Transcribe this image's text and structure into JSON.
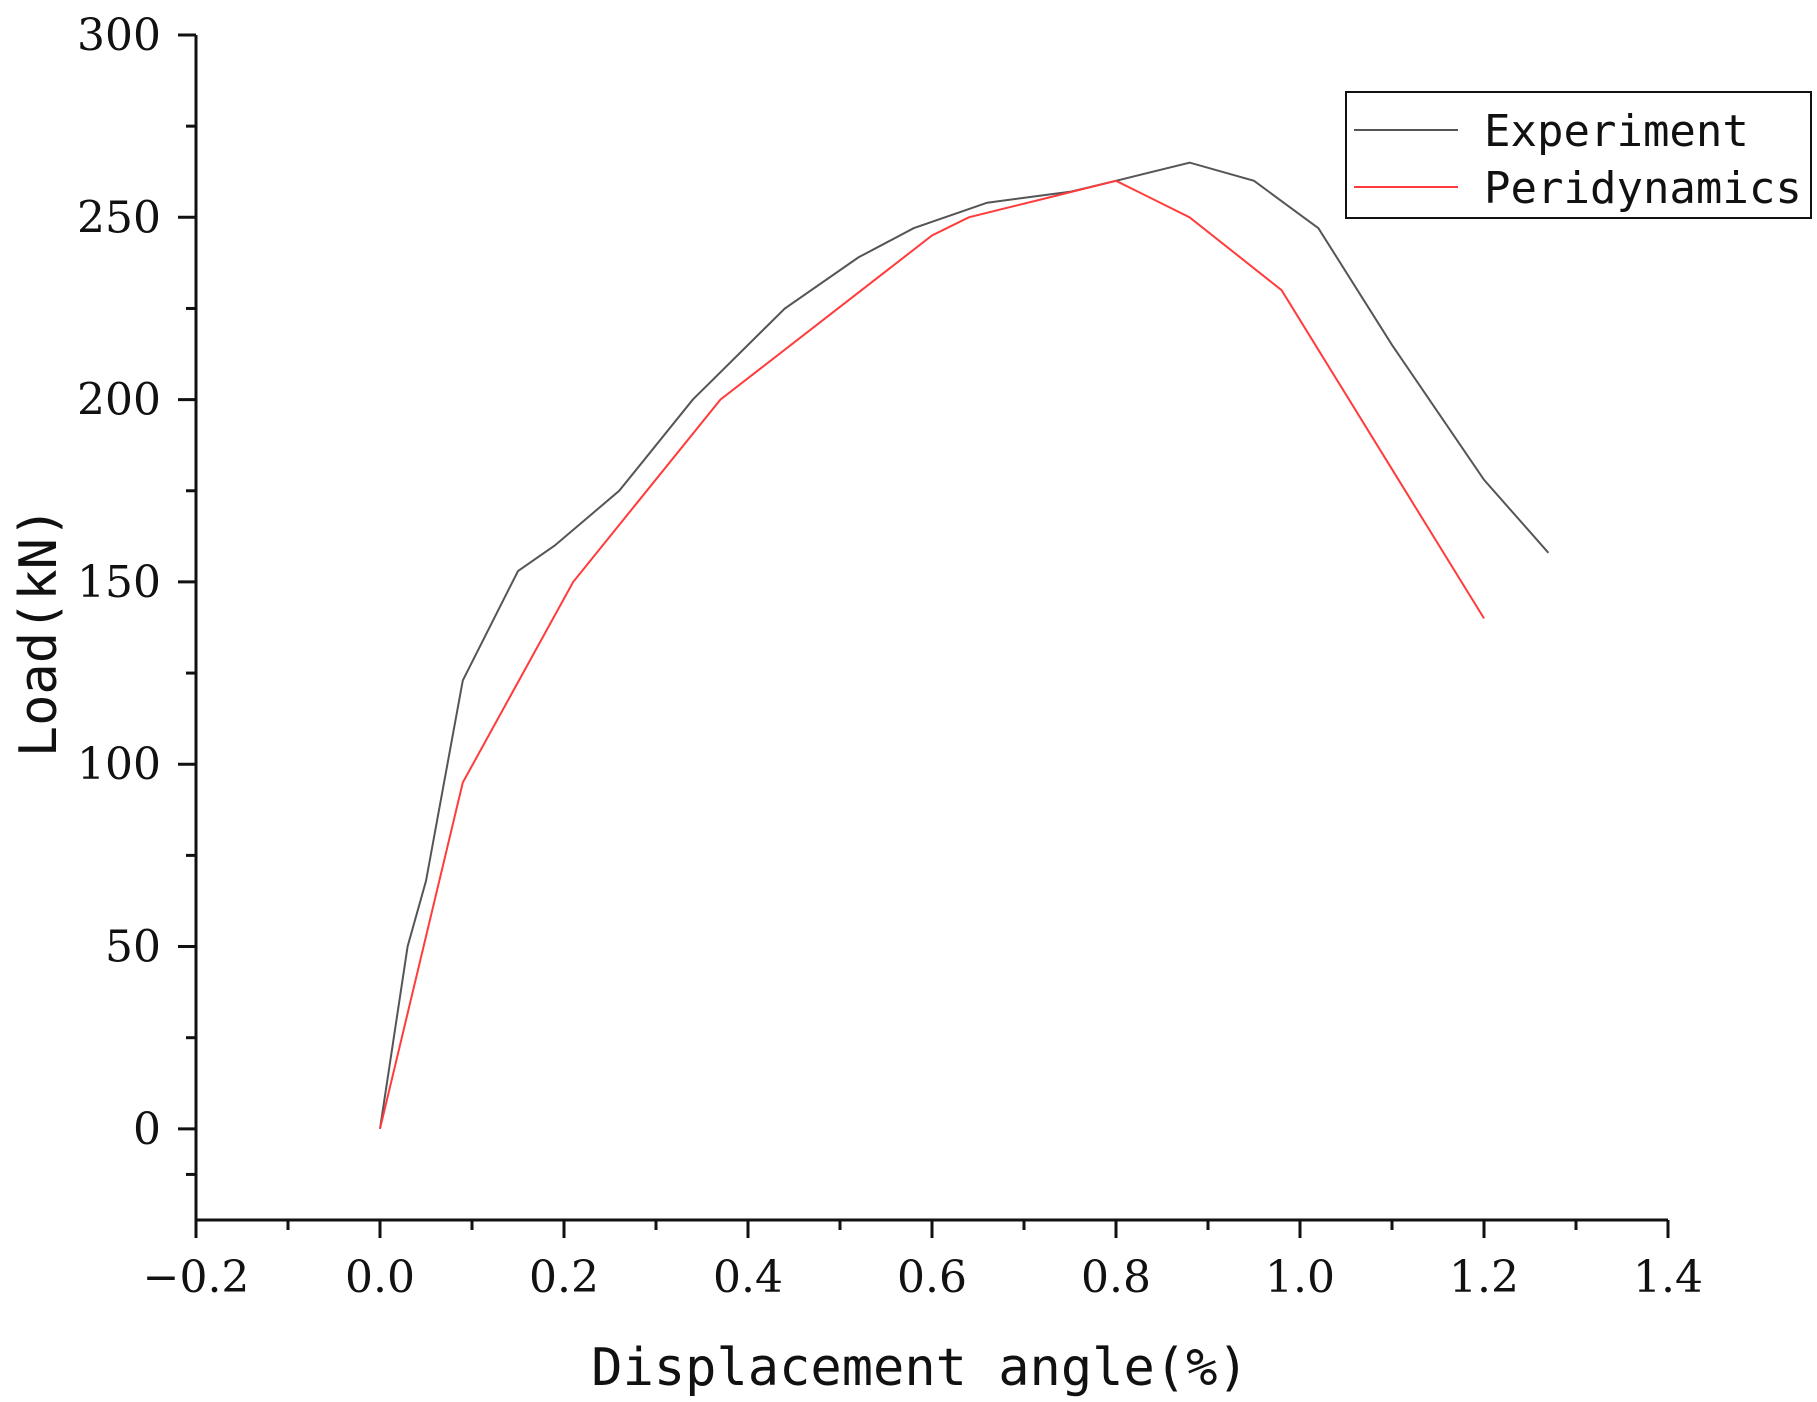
{
  "chart_data": {
    "type": "line",
    "xlabel": "Displacement angle(%)",
    "ylabel": "Load(kN)",
    "xlim": [
      -0.2,
      1.4
    ],
    "ylim": [
      -25,
      300
    ],
    "x_ticks": [
      "−0.2",
      "0.0",
      "0.2",
      "0.4",
      "0.6",
      "0.8",
      "1.0",
      "1.2",
      "1.4"
    ],
    "x_tick_values": [
      -0.2,
      0.0,
      0.2,
      0.4,
      0.6,
      0.8,
      1.0,
      1.2,
      1.4
    ],
    "y_ticks": [
      "0",
      "50",
      "100",
      "150",
      "200",
      "250",
      "300"
    ],
    "y_tick_values": [
      0,
      50,
      100,
      150,
      200,
      250,
      300
    ],
    "grid": false,
    "legend_position": "top-right",
    "series": [
      {
        "name": "Experiment",
        "color": "#555555",
        "x": [
          0.0,
          0.03,
          0.05,
          0.09,
          0.15,
          0.19,
          0.26,
          0.34,
          0.44,
          0.52,
          0.58,
          0.66,
          0.75,
          0.8,
          0.88,
          0.95,
          1.02,
          1.1,
          1.2,
          1.27
        ],
        "y": [
          0,
          50,
          68,
          123,
          153,
          160,
          175,
          200,
          225,
          239,
          247,
          254,
          257,
          260,
          265,
          260,
          247,
          215,
          178,
          158
        ]
      },
      {
        "name": "Peridynamics",
        "color": "#ff3b3b",
        "x": [
          0.0,
          0.09,
          0.21,
          0.37,
          0.6,
          0.64,
          0.72,
          0.8,
          0.88,
          0.98,
          1.2
        ],
        "y": [
          0,
          95,
          150,
          200,
          245,
          250,
          255,
          260,
          250,
          230,
          140
        ]
      }
    ]
  }
}
